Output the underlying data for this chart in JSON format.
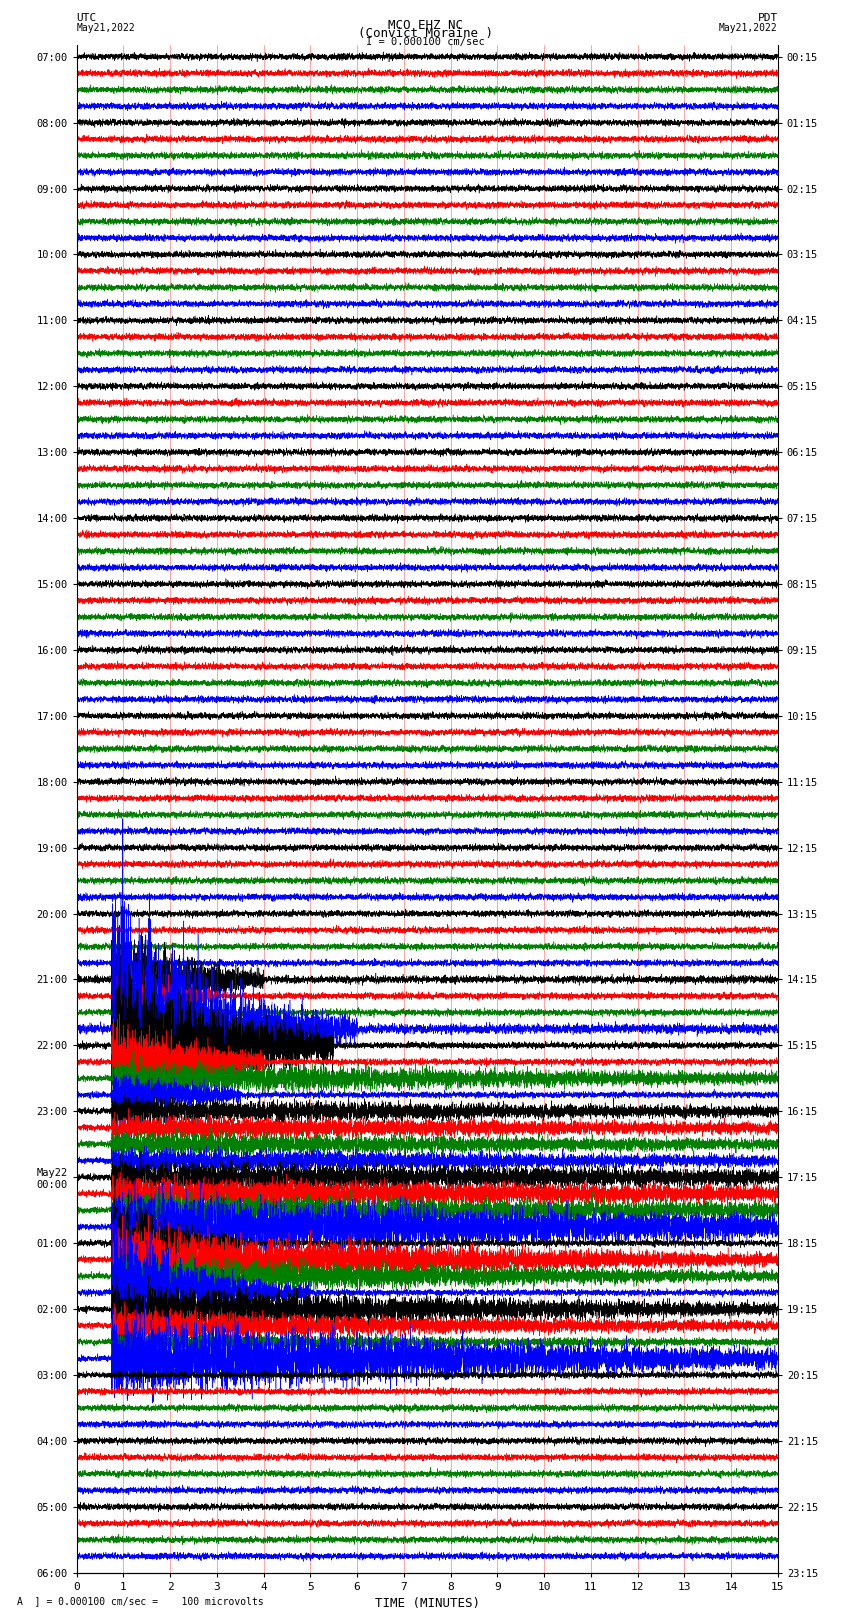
{
  "title_line1": "MCO EHZ NC",
  "title_line2": "(Convict Moraine )",
  "scale_label": "I = 0.000100 cm/sec",
  "left_label_top": "UTC",
  "left_label_date": "May21,2022",
  "right_label_top": "PDT",
  "right_label_date": "May21,2022",
  "bottom_label": "TIME (MINUTES)",
  "scale_note": "A  ] = 0.000100 cm/sec =    100 microvolts",
  "xlabel_ticks": [
    0,
    1,
    2,
    3,
    4,
    5,
    6,
    7,
    8,
    9,
    10,
    11,
    12,
    13,
    14,
    15
  ],
  "utc_row_labels": [
    [
      "07:00",
      0
    ],
    [
      "08:00",
      4
    ],
    [
      "09:00",
      8
    ],
    [
      "10:00",
      12
    ],
    [
      "11:00",
      16
    ],
    [
      "12:00",
      20
    ],
    [
      "13:00",
      24
    ],
    [
      "14:00",
      28
    ],
    [
      "15:00",
      32
    ],
    [
      "16:00",
      36
    ],
    [
      "17:00",
      40
    ],
    [
      "18:00",
      44
    ],
    [
      "19:00",
      48
    ],
    [
      "20:00",
      52
    ],
    [
      "21:00",
      56
    ],
    [
      "22:00",
      60
    ],
    [
      "23:00",
      64
    ],
    [
      "May22\n00:00",
      68
    ],
    [
      "01:00",
      72
    ],
    [
      "02:00",
      76
    ],
    [
      "03:00",
      80
    ],
    [
      "04:00",
      84
    ],
    [
      "05:00",
      88
    ],
    [
      "06:00",
      92
    ]
  ],
  "pdt_row_labels": [
    [
      "00:15",
      0
    ],
    [
      "01:15",
      4
    ],
    [
      "02:15",
      8
    ],
    [
      "03:15",
      12
    ],
    [
      "04:15",
      16
    ],
    [
      "05:15",
      20
    ],
    [
      "06:15",
      24
    ],
    [
      "07:15",
      28
    ],
    [
      "08:15",
      32
    ],
    [
      "09:15",
      36
    ],
    [
      "10:15",
      40
    ],
    [
      "11:15",
      44
    ],
    [
      "12:15",
      48
    ],
    [
      "13:15",
      52
    ],
    [
      "14:15",
      56
    ],
    [
      "15:15",
      60
    ],
    [
      "16:15",
      64
    ],
    [
      "17:15",
      68
    ],
    [
      "18:15",
      72
    ],
    [
      "19:15",
      76
    ],
    [
      "20:15",
      80
    ],
    [
      "21:15",
      84
    ],
    [
      "22:15",
      88
    ],
    [
      "23:15",
      92
    ]
  ],
  "n_rows": 92,
  "minutes": 15,
  "colors_cycle": [
    "black",
    "red",
    "green",
    "blue"
  ],
  "bg_color": "white",
  "vline_color": "red",
  "figsize": [
    8.5,
    16.13
  ],
  "dpi": 100
}
